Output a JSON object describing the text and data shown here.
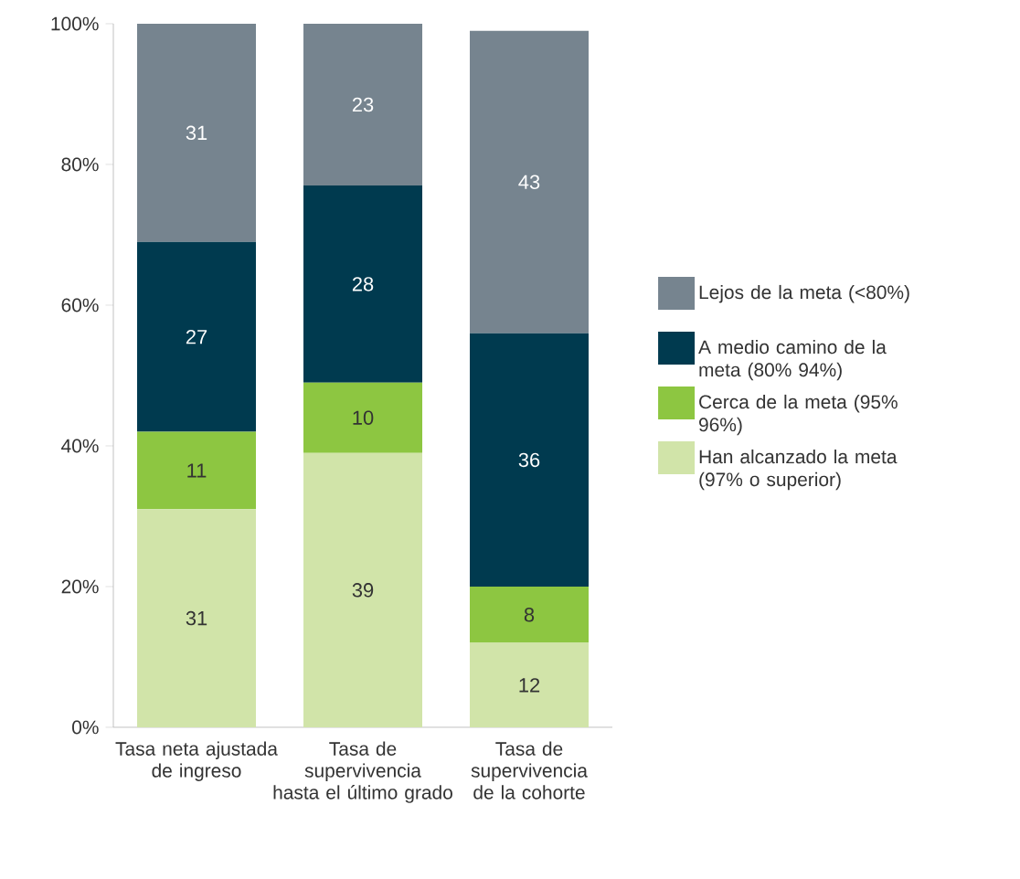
{
  "chart_data": {
    "type": "bar",
    "stacked": true,
    "categories": [
      "Tasa neta ajustada de ingreso",
      "Tasa de supervivencia hasta el último grado",
      "Tasa de supervivencia de la cohorte"
    ],
    "series": [
      {
        "name": "Han alcanzado la meta (97% o superior)",
        "color": "#d1e4a9",
        "values": [
          31,
          39,
          12
        ]
      },
      {
        "name": "Cerca de la meta (95% 96%)",
        "color": "#8dc641",
        "values": [
          11,
          10,
          8
        ]
      },
      {
        "name": "A medio camino de la meta (80% 94%)",
        "color": "#003a4f",
        "values": [
          27,
          28,
          36
        ]
      },
      {
        "name": "Lejos de la meta (<80%)",
        "color": "#76848f",
        "values": [
          31,
          23,
          43
        ]
      }
    ],
    "ylim": [
      0,
      100
    ],
    "yticks": [
      {
        "value": 0,
        "label": "0%"
      },
      {
        "value": 20,
        "label": "20%"
      },
      {
        "value": 40,
        "label": "40%"
      },
      {
        "value": 60,
        "label": "60%"
      },
      {
        "value": 80,
        "label": "80%"
      },
      {
        "value": 100,
        "label": "100%"
      }
    ],
    "data_labels": true,
    "legend": "right"
  }
}
